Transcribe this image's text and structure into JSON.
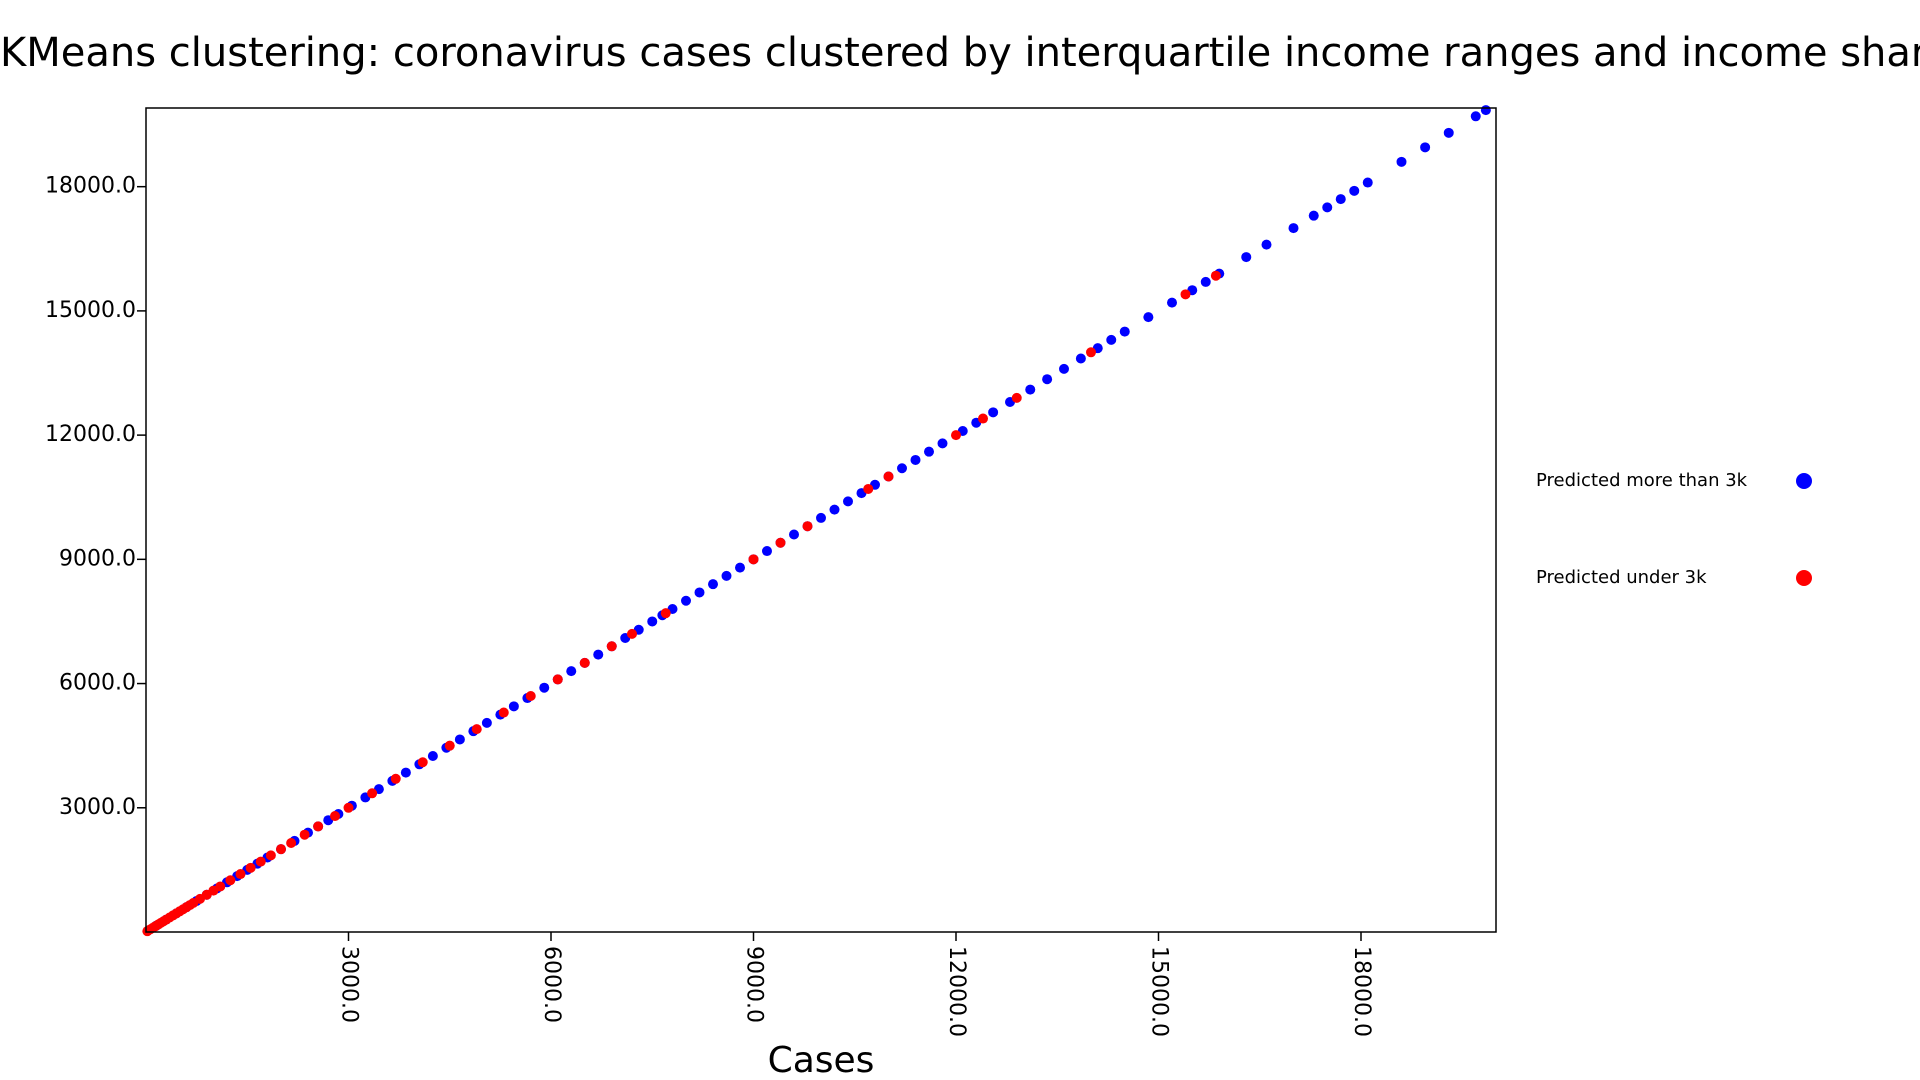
{
  "chart_data": {
    "type": "scatter",
    "title": "KMeans clustering: coronavirus cases clustered by interquartile income ranges and income shares",
    "xlabel": "Cases",
    "ylabel": "",
    "xlim": [
      0,
      20000
    ],
    "ylim": [
      0,
      19900
    ],
    "xticks": [
      3000,
      6000,
      9000,
      12000,
      15000,
      18000
    ],
    "xtick_labels": [
      "3000.0",
      "6000.0",
      "9000.0",
      "12000.0",
      "15000.0",
      "18000.0"
    ],
    "yticks": [
      3000,
      6000,
      9000,
      12000,
      15000,
      18000
    ],
    "ytick_labels": [
      "3000.0",
      "6000.0",
      "9000.0",
      "12000.0",
      "15000.0",
      "18000.0"
    ],
    "grid": false,
    "legend_position": "right",
    "series": [
      {
        "name": "Predicted more than 3k",
        "color": "#0000ff",
        "x": [
          150,
          300,
          450,
          600,
          750,
          900,
          1050,
          1200,
          1350,
          1500,
          1650,
          1800,
          2000,
          2200,
          2400,
          2550,
          2700,
          2850,
          3050,
          3250,
          3450,
          3650,
          3850,
          4050,
          4250,
          4450,
          4650,
          4850,
          5050,
          5250,
          5450,
          5650,
          5900,
          6100,
          6300,
          6500,
          6700,
          6900,
          7100,
          7300,
          7500,
          7650,
          7800,
          8000,
          8200,
          8400,
          8600,
          8800,
          9000,
          9200,
          9400,
          9600,
          9800,
          10000,
          10200,
          10400,
          10600,
          10800,
          11000,
          11200,
          11400,
          11600,
          11800,
          12100,
          12300,
          12550,
          12800,
          13100,
          13350,
          13600,
          13850,
          14100,
          14300,
          14500,
          14850,
          15200,
          15500,
          15700,
          15900,
          16300,
          16600,
          17000,
          17300,
          17500,
          17700,
          17900,
          18100,
          18600,
          18950,
          19300,
          19700,
          19850
        ],
        "y": [
          150,
          300,
          450,
          600,
          750,
          900,
          1050,
          1200,
          1350,
          1500,
          1650,
          1800,
          2000,
          2200,
          2400,
          2550,
          2700,
          2850,
          3050,
          3250,
          3450,
          3650,
          3850,
          4050,
          4250,
          4450,
          4650,
          4850,
          5050,
          5250,
          5450,
          5650,
          5900,
          6100,
          6300,
          6500,
          6700,
          6900,
          7100,
          7300,
          7500,
          7650,
          7800,
          8000,
          8200,
          8400,
          8600,
          8800,
          9000,
          9200,
          9400,
          9600,
          9800,
          10000,
          10200,
          10400,
          10600,
          10800,
          11000,
          11200,
          11400,
          11600,
          11800,
          12100,
          12300,
          12550,
          12800,
          13100,
          13350,
          13600,
          13850,
          14100,
          14300,
          14500,
          14850,
          15200,
          15500,
          15700,
          15900,
          16300,
          16600,
          17000,
          17300,
          17500,
          17700,
          17900,
          18100,
          18600,
          18950,
          19300,
          19700,
          19850
        ]
      },
      {
        "name": "Predicted under 3k",
        "color": "#ff0000",
        "x": [
          20,
          60,
          100,
          140,
          180,
          220,
          260,
          300,
          350,
          400,
          450,
          500,
          550,
          600,
          650,
          700,
          800,
          900,
          1000,
          1100,
          1250,
          1400,
          1550,
          1700,
          1850,
          2000,
          2150,
          2350,
          2550,
          2800,
          3000,
          3350,
          3700,
          4100,
          4500,
          4900,
          5300,
          5700,
          6100,
          6500,
          6900,
          7200,
          7700,
          9000,
          9400,
          9800,
          10700,
          11000,
          12000,
          12400,
          12900,
          14000,
          15400,
          15850
        ],
        "y": [
          20,
          60,
          100,
          140,
          180,
          220,
          260,
          300,
          350,
          400,
          450,
          500,
          550,
          600,
          650,
          700,
          800,
          900,
          1000,
          1100,
          1250,
          1400,
          1550,
          1700,
          1850,
          2000,
          2150,
          2350,
          2550,
          2800,
          3000,
          3350,
          3700,
          4100,
          4500,
          4900,
          5300,
          5700,
          6100,
          6500,
          6900,
          7200,
          7700,
          9000,
          9400,
          9800,
          10700,
          11000,
          12000,
          12400,
          12900,
          14000,
          15400,
          15850
        ]
      }
    ]
  }
}
